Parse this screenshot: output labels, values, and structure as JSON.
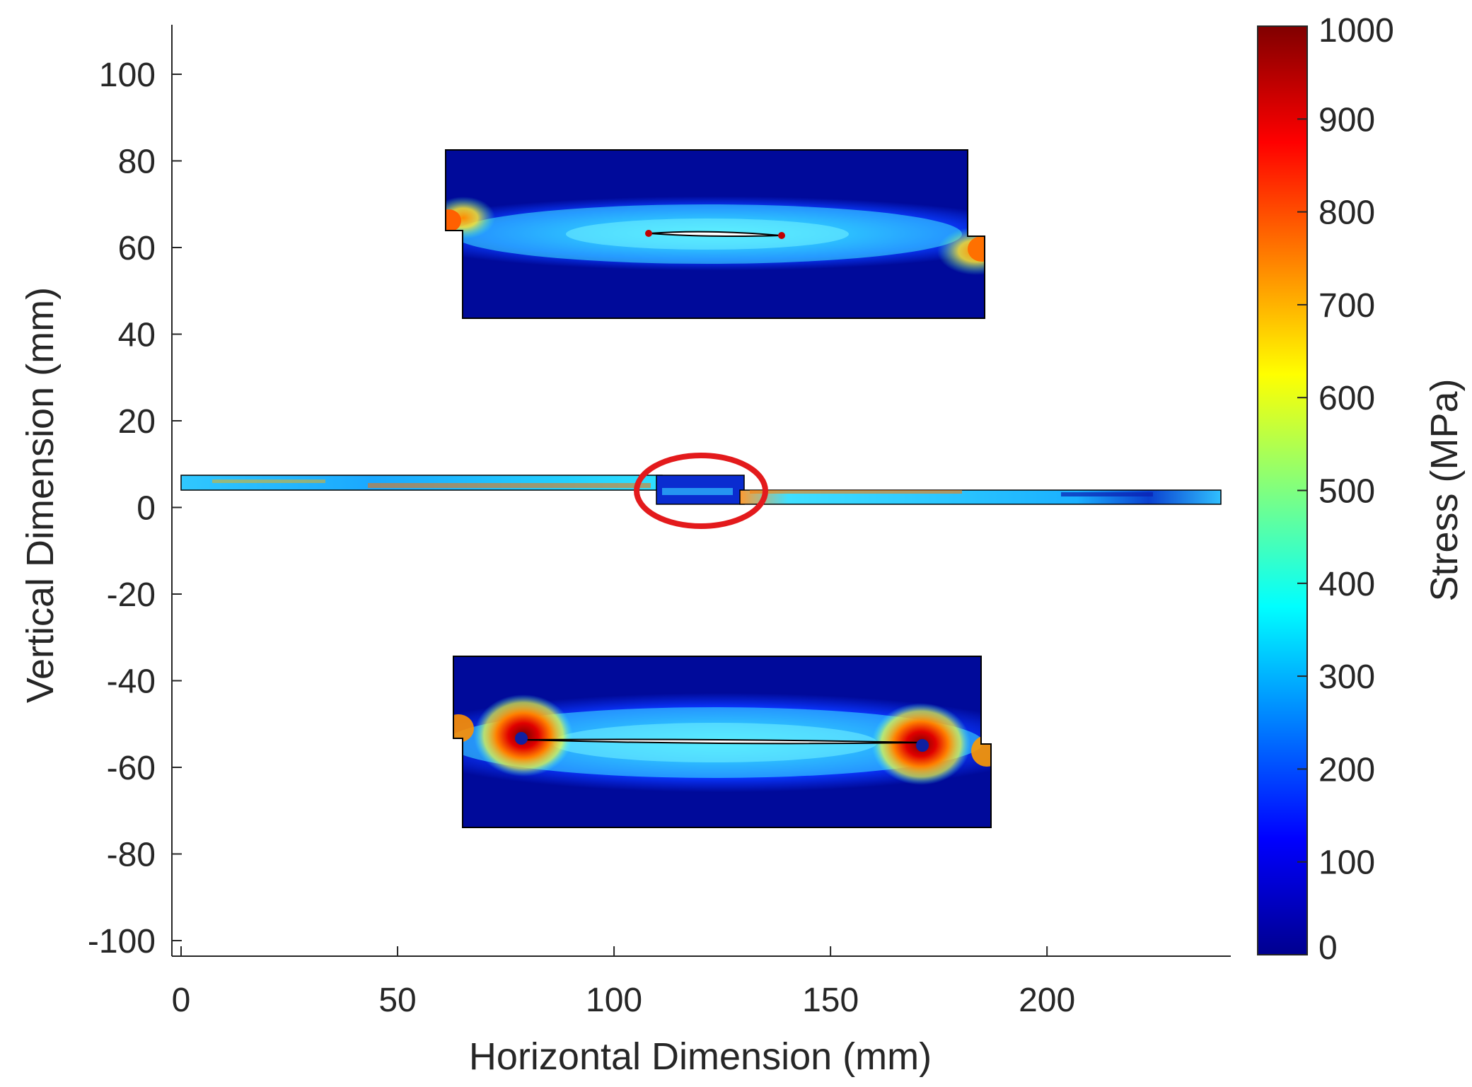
{
  "chart_data": {
    "type": "heatmap",
    "xlabel": "Horizontal Dimension (mm)",
    "ylabel": "Vertical Dimension (mm)",
    "xlim": [
      0,
      243
    ],
    "ylim": [
      -105,
      112
    ],
    "x_ticks": [
      0,
      50,
      100,
      150,
      200
    ],
    "y_ticks": [
      100,
      80,
      60,
      40,
      20,
      0,
      -20,
      -40,
      -60,
      -80,
      -100
    ],
    "grid": false,
    "colorbar": {
      "label": "Stress (MPa)",
      "colormap": "jet",
      "range": [
        0,
        1000
      ],
      "ticks": [
        0,
        100,
        200,
        300,
        400,
        500,
        600,
        700,
        800,
        900,
        1000
      ]
    },
    "annotations": [
      {
        "type": "ellipse",
        "color": "#e31a1c",
        "center": [
          119.5,
          3.5
        ],
        "radii": [
          15,
          8
        ]
      }
    ]
  }
}
